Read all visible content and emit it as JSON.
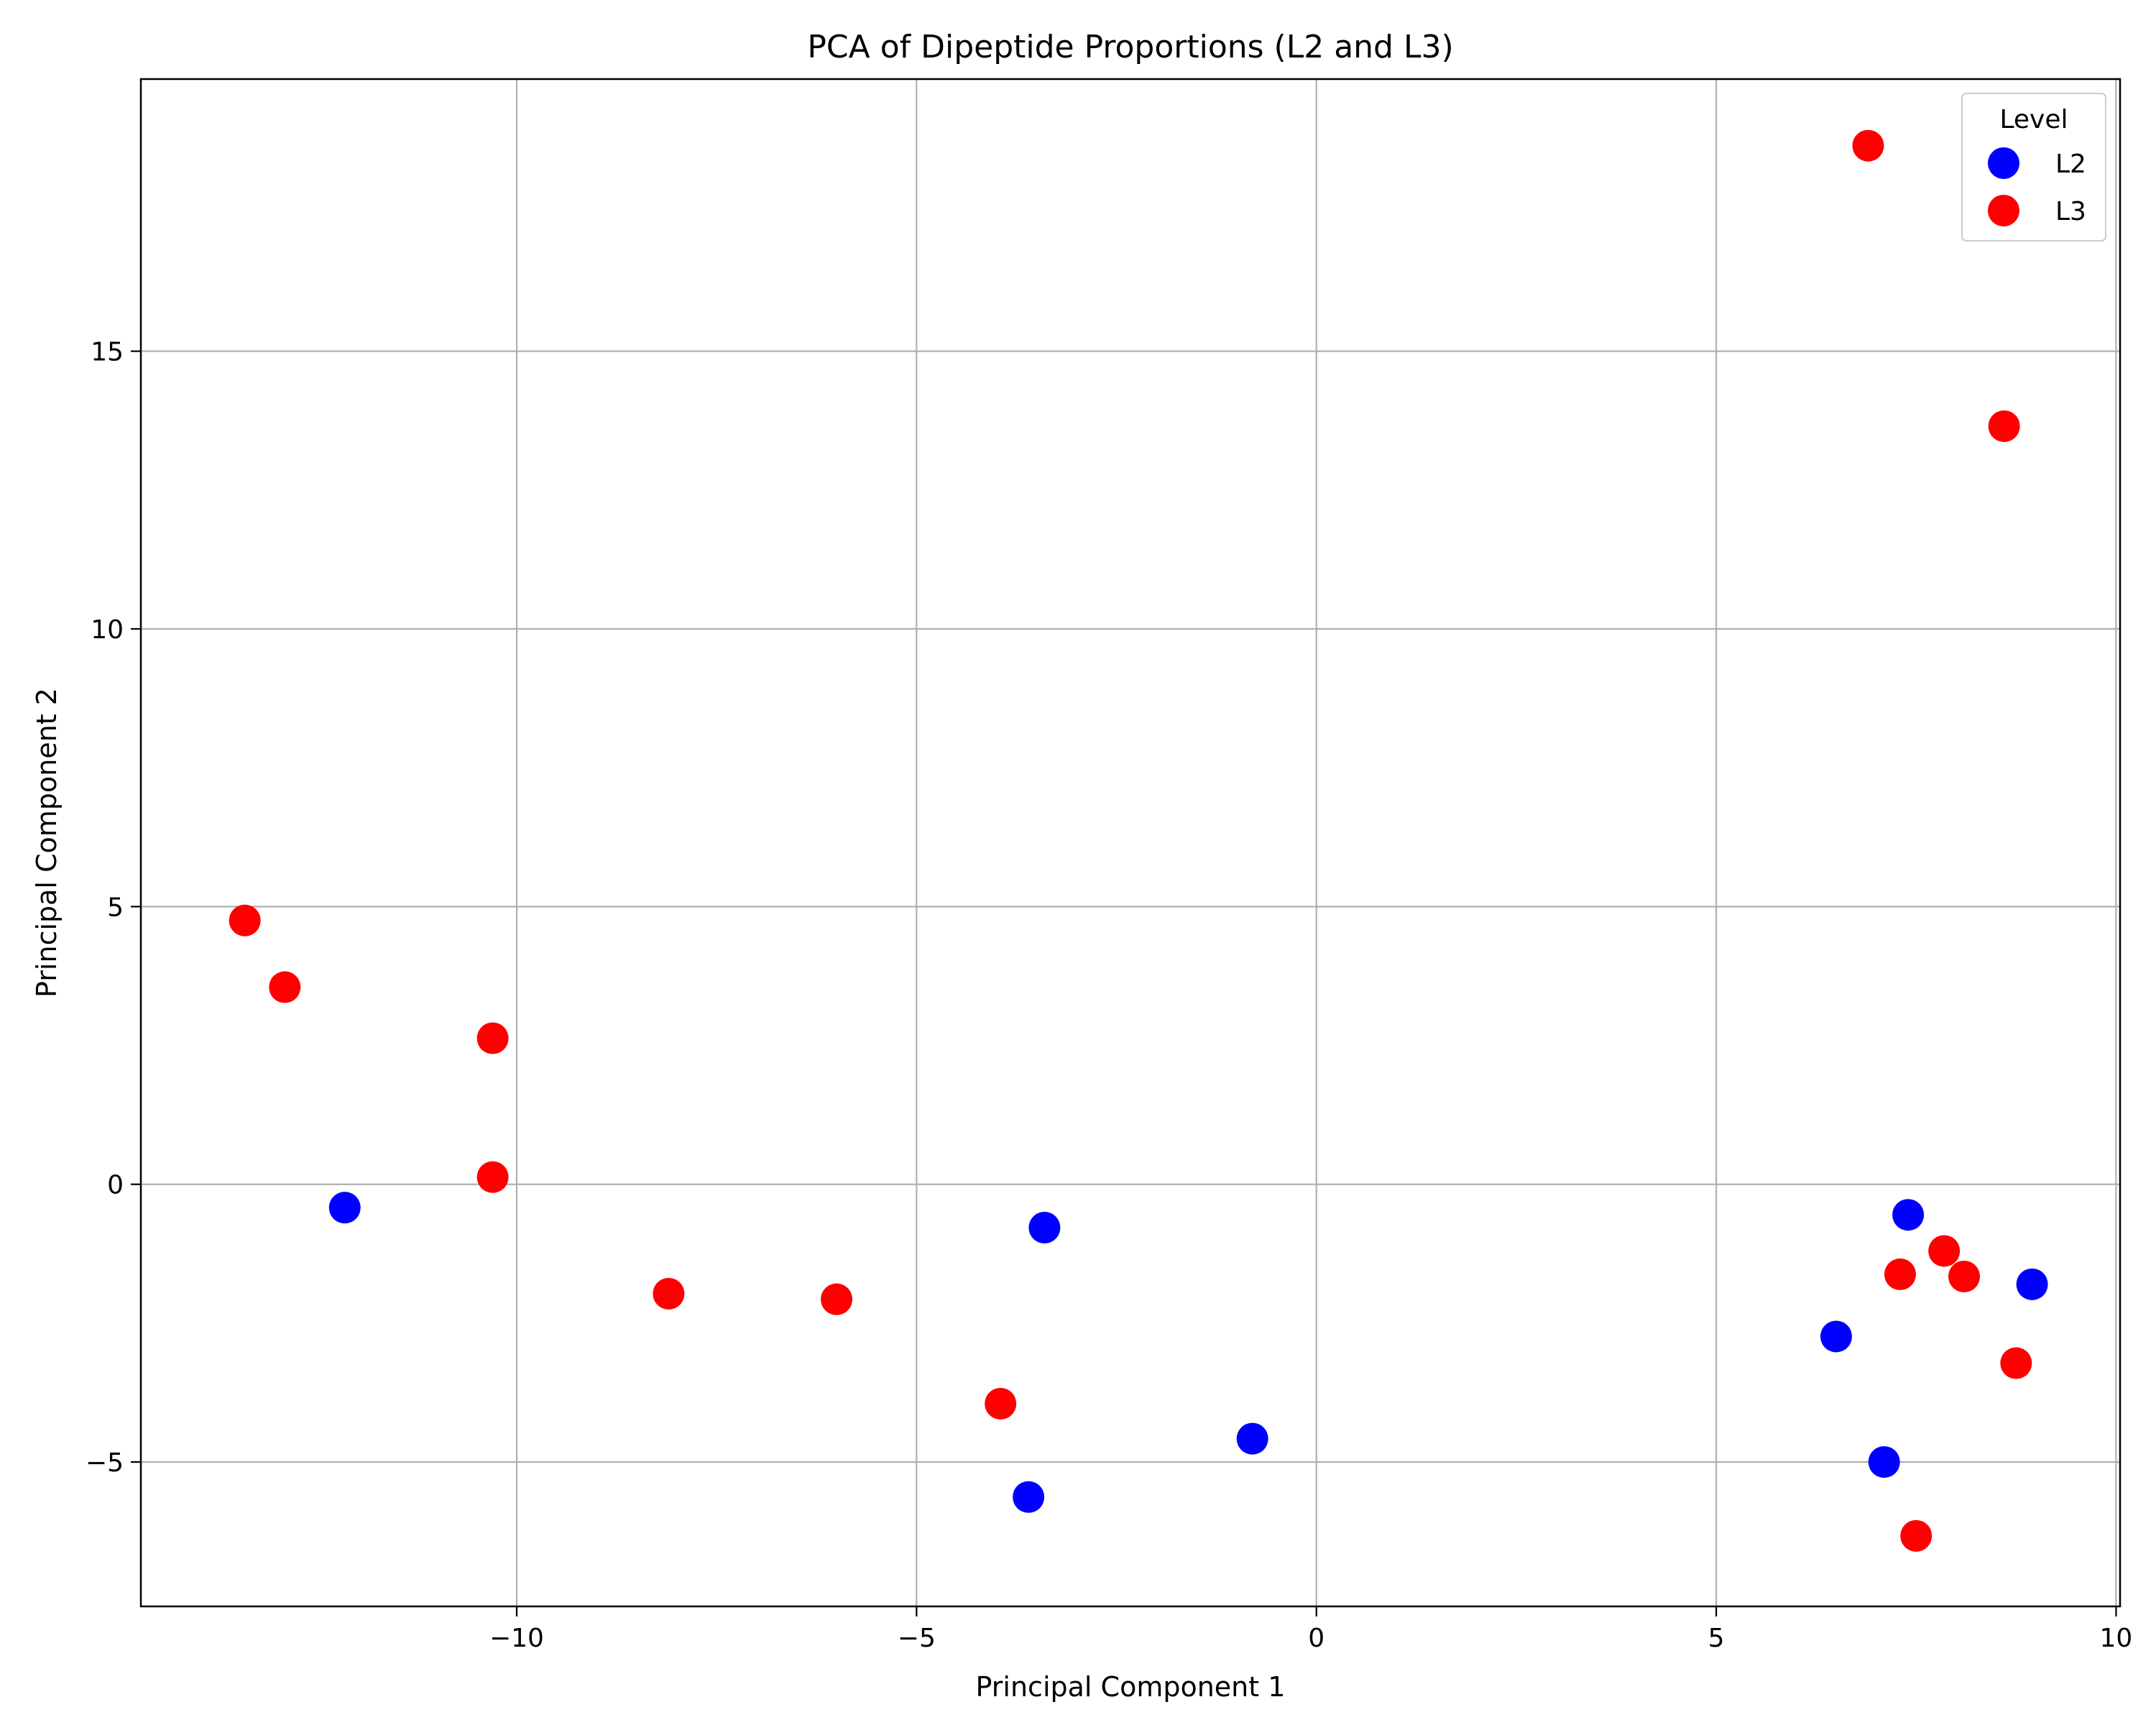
{
  "chart_data": {
    "type": "scatter",
    "title": "PCA of Dipeptide Proportions (L2 and L3)",
    "xlabel": "Principal Component 1",
    "ylabel": "Principal Component 2",
    "xlim": [
      -14.7,
      10.05
    ],
    "ylim": [
      -7.6,
      19.9
    ],
    "xticks": [
      -10,
      -5,
      0,
      5,
      10
    ],
    "yticks": [
      -5,
      0,
      5,
      10,
      15
    ],
    "xtick_labels": [
      "−10",
      "−5",
      "0",
      "5",
      "10"
    ],
    "ytick_labels": [
      "−5",
      "0",
      "5",
      "10",
      "15"
    ],
    "grid": true,
    "legend": {
      "title": "Level",
      "position": "top-right"
    },
    "series": [
      {
        "name": "L2",
        "color": "#0000ff",
        "points": [
          [
            -12.15,
            -0.42
          ],
          [
            -3.4,
            -0.78
          ],
          [
            -3.6,
            -5.63
          ],
          [
            -0.8,
            -4.58
          ],
          [
            6.5,
            -2.74
          ],
          [
            7.1,
            -5.0
          ],
          [
            7.4,
            -0.55
          ],
          [
            8.95,
            -1.8
          ]
        ]
      },
      {
        "name": "L3",
        "color": "#ff0000",
        "points": [
          [
            -13.4,
            4.75
          ],
          [
            -12.9,
            3.55
          ],
          [
            -10.3,
            2.63
          ],
          [
            -10.3,
            0.13
          ],
          [
            -8.1,
            -1.97
          ],
          [
            -6.0,
            -2.07
          ],
          [
            -3.95,
            -3.95
          ],
          [
            6.9,
            18.7
          ],
          [
            8.6,
            13.65
          ],
          [
            7.3,
            -1.62
          ],
          [
            7.85,
            -1.2
          ],
          [
            8.1,
            -1.66
          ],
          [
            8.75,
            -3.22
          ],
          [
            7.5,
            -6.33
          ]
        ]
      }
    ]
  }
}
